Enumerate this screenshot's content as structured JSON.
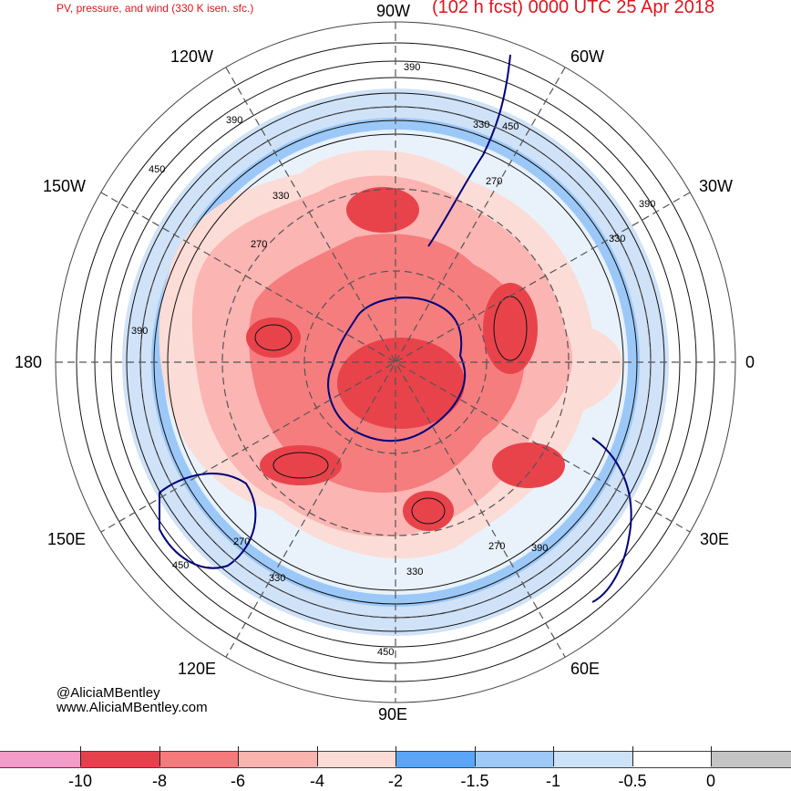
{
  "header": {
    "left_title": "PV, pressure, and wind (330 K isen. sfc.)",
    "right_title": "(102 h fcst) 0000 UTC 25 Apr 2018"
  },
  "map": {
    "projection": "south polar stereographic",
    "longitude_labels": {
      "top": "90W",
      "top_left": "120W",
      "top_right": "60W",
      "upper_left": "150W",
      "upper_right": "30W",
      "left": "180",
      "right": "0",
      "lower_left": "150E",
      "lower_right": "30E",
      "bottom_left": "120E",
      "bottom_right": "60E",
      "bottom": "90E"
    },
    "pressure_contour_labels": [
      "390",
      "330",
      "450",
      "270",
      "330",
      "390",
      "390",
      "450",
      "270",
      "330",
      "390",
      "330",
      "450",
      "270",
      "390",
      "330",
      "450",
      "270"
    ],
    "colors": {
      "strong_negative": "#e8434b",
      "moderate_negative": "#f57d7e",
      "weak_negative": "#fbb5b2",
      "weakest_negative": "#fcdcd6",
      "blue_strong": "#5fa7f7",
      "blue_mid": "#9cc8f7",
      "blue_light": "#cfe2f8",
      "coastline": "#00007a"
    }
  },
  "credits": {
    "handle": "@AliciaMBentley",
    "website": "www.AliciaMBentley.com"
  },
  "colorbar": {
    "labels": [
      "-10",
      "-8",
      "-6",
      "-4",
      "-2",
      "-1.5",
      "-1",
      "-0.5",
      "0"
    ],
    "colors": [
      "#f49bc8",
      "#e4414c",
      "#f57a7b",
      "#fbb3ae",
      "#fcdcd6",
      "#5aa5f7",
      "#9cc9f8",
      "#cde1f7",
      "#ffffff",
      "#c4c4c4"
    ]
  }
}
